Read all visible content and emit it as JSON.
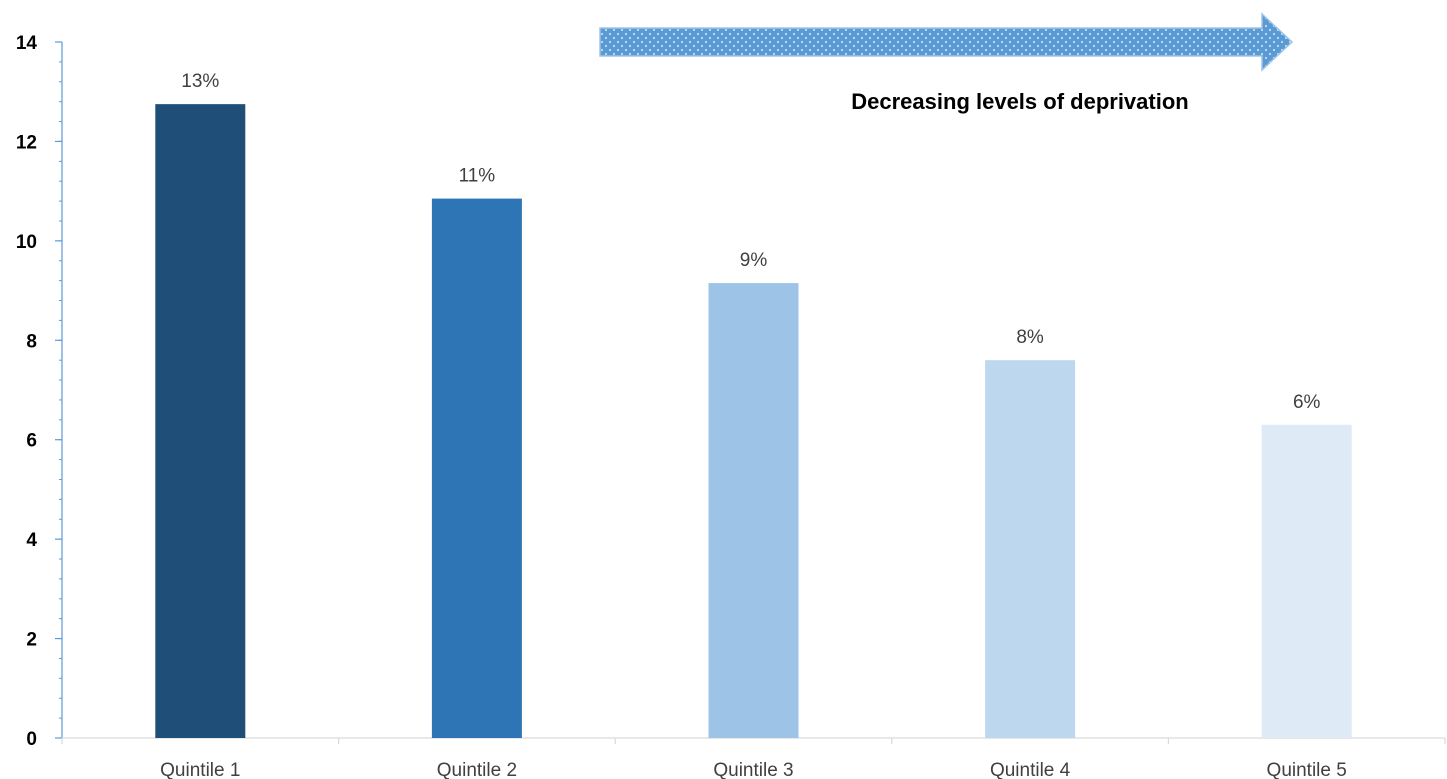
{
  "chart_data": {
    "type": "bar",
    "categories": [
      "Quintile 1",
      "Quintile 2",
      "Quintile 3",
      "Quintile 4",
      "Quintile 5"
    ],
    "values": [
      12.75,
      10.85,
      9.15,
      7.6,
      6.3
    ],
    "data_labels": [
      "13%",
      "11%",
      "9%",
      "8%",
      "6%"
    ],
    "bar_colors": [
      "#1f4e79",
      "#2e75b6",
      "#9dc3e6",
      "#bdd7ee",
      "#deebf7"
    ],
    "ylim": [
      0,
      14
    ],
    "yticks": [
      0,
      2,
      4,
      6,
      8,
      10,
      12,
      14
    ],
    "grid": false,
    "annotation": {
      "text": "Decreasing levels of deprivation",
      "arrow_color": "#5b9bd5",
      "arrow_direction": "right"
    }
  }
}
